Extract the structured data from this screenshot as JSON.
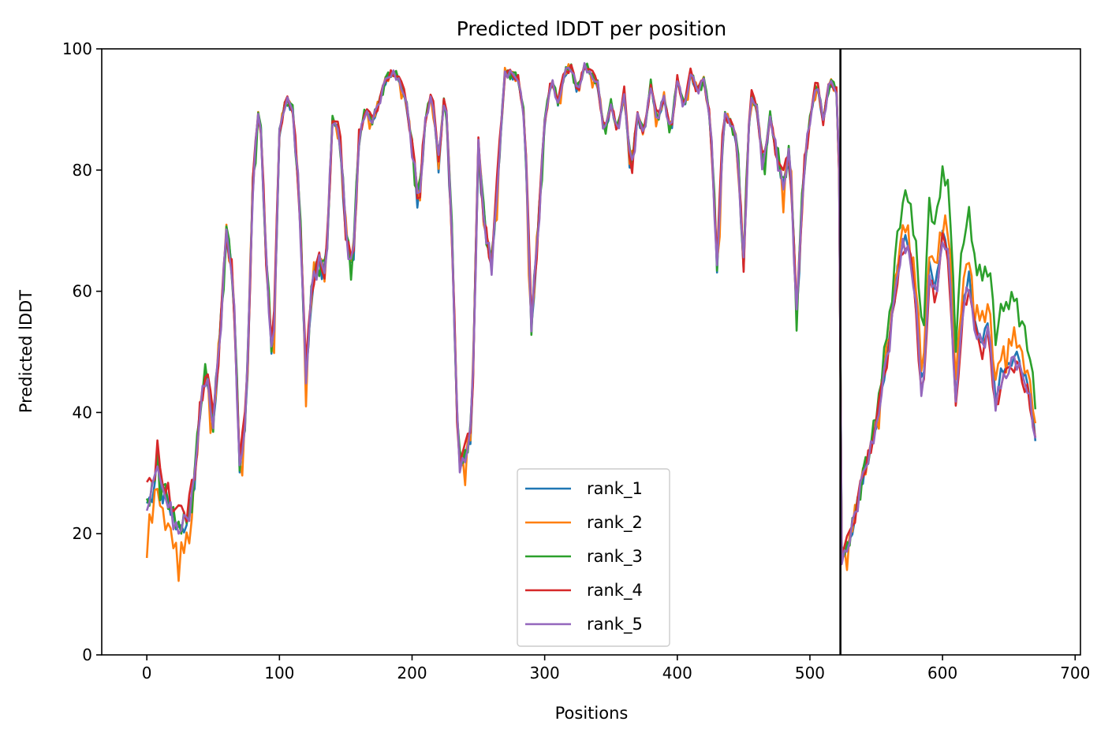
{
  "chart_data": {
    "type": "line",
    "title": "Predicted lDDT per position",
    "xlabel": "Positions",
    "ylabel": "Predicted lDDT",
    "xlim": [
      -34,
      704
    ],
    "ylim": [
      0,
      100
    ],
    "xticks": [
      0,
      100,
      200,
      300,
      400,
      500,
      600,
      700
    ],
    "yticks": [
      0,
      20,
      40,
      60,
      80,
      100
    ],
    "grid": false,
    "legend_position": "lower-center",
    "chain_break": 523,
    "series": [
      {
        "name": "rank_1",
        "color": "#1f77b4"
      },
      {
        "name": "rank_2",
        "color": "#ff7f0e"
      },
      {
        "name": "rank_3",
        "color": "#2ca02c"
      },
      {
        "name": "rank_4",
        "color": "#d62728"
      },
      {
        "name": "rank_5",
        "color": "#9467bd"
      }
    ],
    "profile": {
      "x": [
        0,
        5,
        8,
        10,
        15,
        20,
        25,
        30,
        35,
        40,
        45,
        50,
        55,
        60,
        65,
        70,
        75,
        80,
        85,
        90,
        95,
        100,
        105,
        110,
        115,
        120,
        125,
        130,
        135,
        140,
        145,
        150,
        155,
        160,
        165,
        170,
        175,
        180,
        185,
        190,
        195,
        200,
        205,
        210,
        215,
        220,
        225,
        230,
        235,
        240,
        245,
        250,
        255,
        260,
        265,
        270,
        275,
        280,
        285,
        290,
        295,
        300,
        305,
        310,
        315,
        320,
        325,
        330,
        335,
        340,
        345,
        350,
        355,
        360,
        365,
        370,
        375,
        380,
        385,
        390,
        395,
        400,
        405,
        410,
        415,
        420,
        425,
        430,
        435,
        440,
        445,
        450,
        455,
        460,
        465,
        470,
        475,
        480,
        485,
        490,
        495,
        500,
        505,
        510,
        515,
        520,
        522
      ],
      "y": [
        25,
        27,
        33,
        28,
        26,
        22,
        21,
        22,
        27,
        40,
        47,
        38,
        52,
        70,
        62,
        31,
        40,
        78,
        92,
        65,
        47,
        86,
        92,
        90,
        75,
        46,
        62,
        65,
        63,
        88,
        87,
        70,
        63,
        85,
        90,
        88,
        91,
        95,
        96,
        95,
        92,
        84,
        74,
        88,
        93,
        81,
        94,
        70,
        31,
        33,
        37,
        84,
        70,
        64,
        80,
        96,
        96,
        95,
        88,
        54,
        70,
        88,
        95,
        91,
        96,
        97,
        93,
        97,
        96,
        94,
        86,
        91,
        86,
        93,
        79,
        89,
        86,
        94,
        88,
        92,
        86,
        95,
        90,
        96,
        93,
        95,
        88,
        64,
        89,
        88,
        85,
        64,
        93,
        90,
        80,
        89,
        82,
        78,
        83,
        56,
        79,
        88,
        95,
        88,
        95,
        93,
        80
      ]
    },
    "segment2_profile": {
      "x": [
        524,
        530,
        535,
        540,
        545,
        550,
        555,
        560,
        565,
        570,
        575,
        580,
        585,
        590,
        595,
        600,
        605,
        610,
        615,
        620,
        625,
        630,
        635,
        640,
        645,
        650,
        655,
        660,
        665,
        670,
        671
      ],
      "y": [
        16,
        19,
        24,
        30,
        33,
        38,
        45,
        52,
        62,
        68,
        68,
        58,
        42,
        64,
        60,
        70,
        66,
        42,
        58,
        62,
        54,
        52,
        55,
        42,
        47,
        48,
        50,
        47,
        44,
        36,
        32
      ]
    },
    "offsets": [
      [
        0,
        0.2,
        -1.4,
        -0.6,
        0.8,
        0.4,
        -2.2,
        1.2,
        0.3,
        -0.5,
        1.6,
        -0.9
      ],
      [
        -5,
        1.4,
        -0.8,
        2.2,
        -1.6,
        0.6,
        1.0,
        -1.8,
        0.5,
        1.3,
        -0.4,
        0.9
      ],
      [
        0.8,
        -1.2,
        2.0,
        -0.3,
        1.1,
        -2.5,
        0.7,
        1.8,
        -1.1,
        0.4,
        2.4,
        -0.6
      ],
      [
        2,
        1.9,
        0.4,
        -1.5,
        0.9,
        1.4,
        -0.7,
        -1.3,
        1.7,
        -0.8,
        0.2,
        1.1
      ],
      [
        -1.2,
        -0.6,
        1.5,
        0.7,
        -1.9,
        1.0,
        0.2,
        -0.4,
        -0.9,
        1.6,
        -1.3,
        0.3
      ]
    ],
    "segment2_bias": [
      0,
      3,
      10,
      -2,
      -1
    ]
  }
}
